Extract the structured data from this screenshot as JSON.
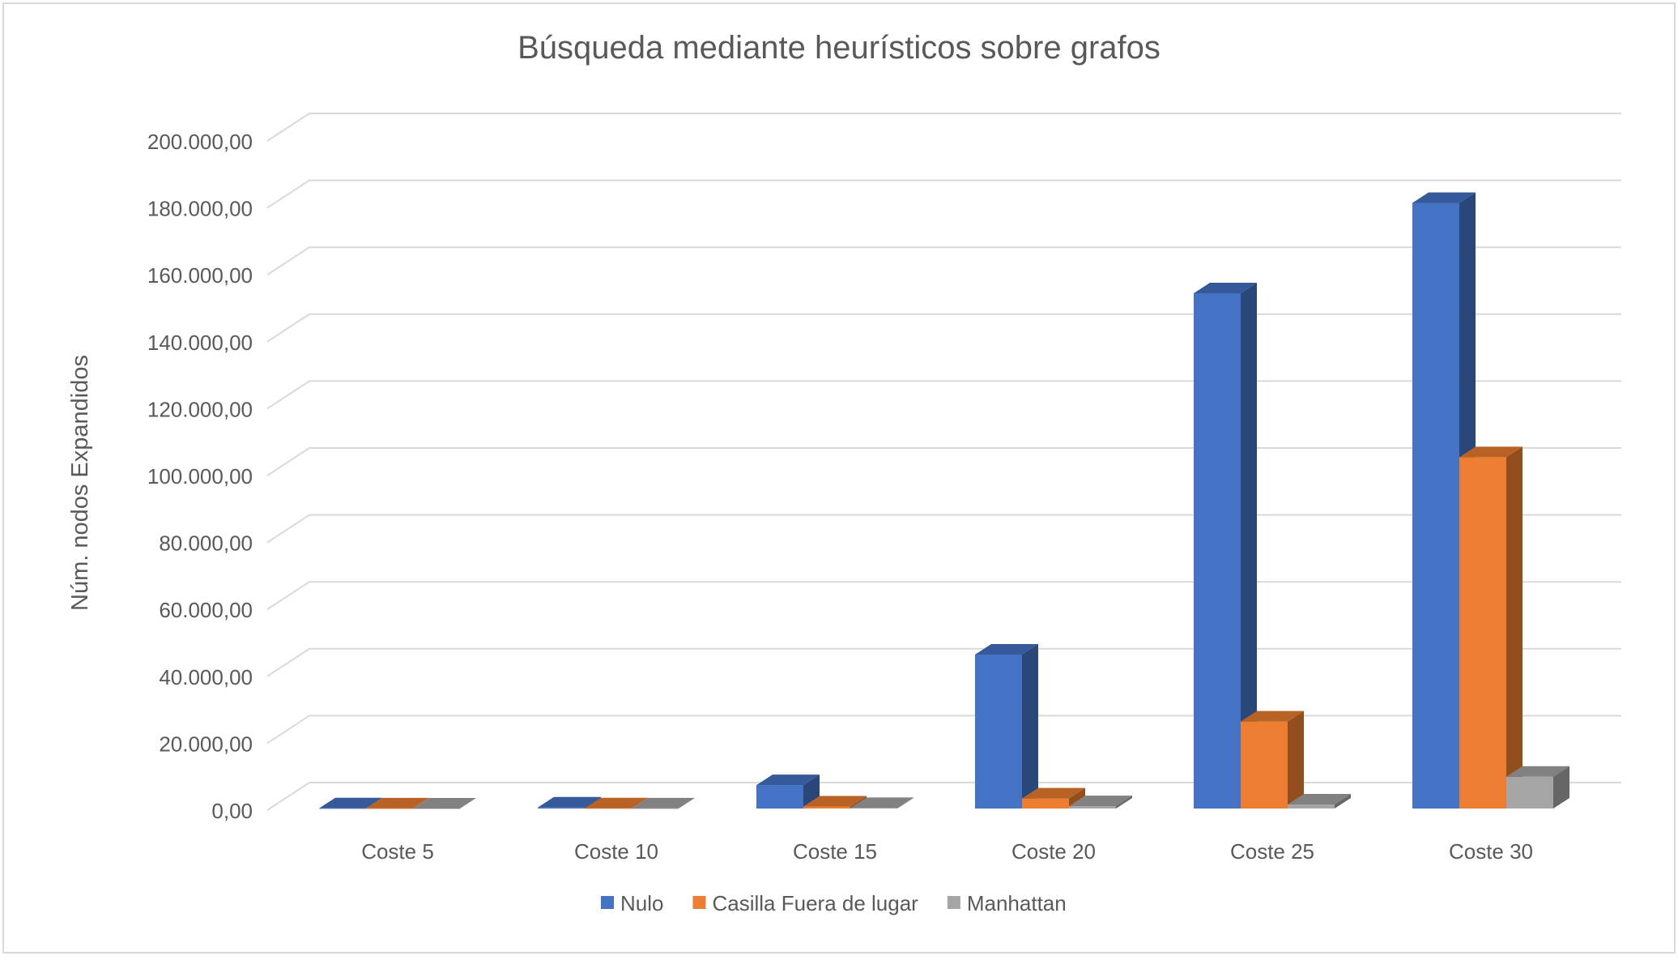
{
  "chart_data": {
    "type": "bar",
    "title": "Búsqueda mediante heurísticos sobre grafos",
    "xlabel": "",
    "ylabel": "Núm. nodos Expandidos",
    "ylim": [
      0,
      200000
    ],
    "y_ticks": [
      0,
      20000,
      40000,
      60000,
      80000,
      100000,
      120000,
      140000,
      160000,
      180000,
      200000
    ],
    "y_tick_labels": [
      "0,00",
      "20.000,00",
      "40.000,00",
      "60.000,00",
      "80.000,00",
      "100.000,00",
      "120.000,00",
      "140.000,00",
      "160.000,00",
      "180.000,00",
      "200.000,00"
    ],
    "categories": [
      "Coste 5",
      "Coste 10",
      "Coste 15",
      "Coste 20",
      "Coste 25",
      "Coste 30"
    ],
    "series": [
      {
        "name": "Nulo",
        "color": "#4472C4",
        "values": [
          50,
          300,
          7000,
          46000,
          154000,
          181000
        ]
      },
      {
        "name": "Casilla Fuera de lugar",
        "color": "#ED7D31",
        "values": [
          20,
          60,
          600,
          3000,
          26000,
          105000
        ]
      },
      {
        "name": "Manhattan",
        "color": "#A5A5A5",
        "values": [
          10,
          20,
          150,
          700,
          1200,
          9500
        ]
      }
    ],
    "grid": true,
    "legend_position": "bottom",
    "style": "3d-clustered-column"
  }
}
